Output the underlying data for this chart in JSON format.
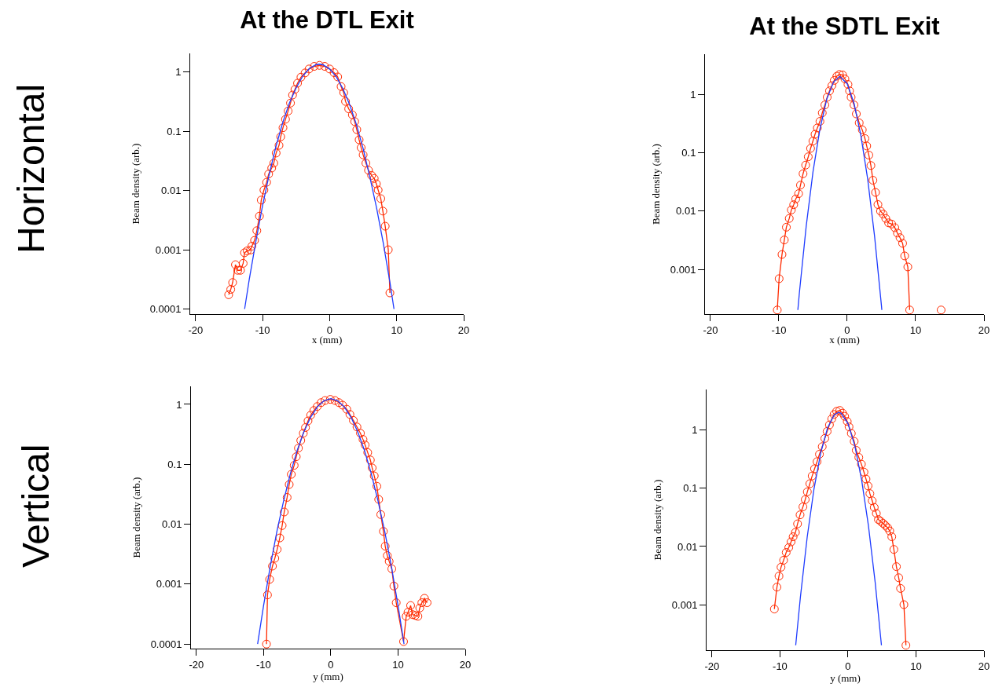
{
  "chart_data": [
    {
      "type": "line",
      "title": "At the DTL Exit",
      "annotations": [
        "Horizontal"
      ],
      "xlabel": "x (mm)",
      "ylabel": "Beam density (arb.)",
      "log": "y",
      "grid": false,
      "xlim": [
        -20.8,
        20
      ],
      "xticks": [
        -20,
        -10,
        0,
        10,
        20
      ],
      "ylim": [
        8.2e-05,
        2.07
      ],
      "yticks": [
        0.0001,
        0.001,
        0.01,
        0.1,
        1
      ],
      "series": [
        {
          "type": "line",
          "color": "#ff2a00",
          "marker": "circle",
          "x": [
            -15.06,
            -14.75,
            -14.47,
            -14.05,
            -13.7,
            -13.3,
            -12.9,
            -12.7,
            -12.3,
            -11.8,
            -11.6,
            -11.2,
            -10.86,
            -10.47,
            -10.2,
            -9.8,
            -9.4,
            -9.1,
            -8.64,
            -8.33,
            -7.98,
            -7.55,
            -7.3,
            -6.96,
            -6.58,
            -6.19,
            -5.84,
            -5.53,
            -5.18,
            -4.79,
            -4.28,
            -3.66,
            -3.07,
            -2.3,
            -1.52,
            -0.74,
            0,
            0.66,
            1.2,
            1.71,
            2.1,
            2.37,
            2.84,
            3.39,
            3.74,
            4.05,
            4.4,
            4.7,
            5.0,
            5.41,
            5.8,
            6.26,
            6.65,
            6.97,
            7.24,
            7.63,
            7.94,
            8.29,
            8.75,
            8.99
          ],
          "values": [
            0.000174,
            0.000214,
            0.00028,
            0.00056,
            0.00045,
            0.00045,
            0.00059,
            0.00089,
            0.00096,
            0.00099,
            0.00115,
            0.00144,
            0.0021,
            0.0037,
            0.0069,
            0.0102,
            0.0138,
            0.019,
            0.024,
            0.029,
            0.043,
            0.058,
            0.081,
            0.115,
            0.16,
            0.22,
            0.3,
            0.41,
            0.51,
            0.65,
            0.82,
            0.97,
            1.13,
            1.25,
            1.3,
            1.25,
            1.13,
            0.98,
            0.83,
            0.57,
            0.45,
            0.32,
            0.24,
            0.19,
            0.146,
            0.107,
            0.072,
            0.053,
            0.04,
            0.029,
            0.022,
            0.018,
            0.016,
            0.013,
            0.0102,
            0.0073,
            0.0045,
            0.0025,
            0.001,
            0.000187
          ]
        },
        {
          "type": "line",
          "color": "#1f3cff",
          "marker": "none",
          "x": [
            -12.68,
            -12,
            -11,
            -10,
            -9,
            -8,
            -7,
            -6,
            -5,
            -4,
            -3,
            -2,
            -1.54,
            -1,
            0,
            1,
            2,
            3,
            4,
            5,
            6,
            7,
            8,
            9,
            9.6
          ],
          "values": [
            0.0001,
            0.00031,
            0.0014,
            0.0056,
            0.019,
            0.056,
            0.14,
            0.3,
            0.54,
            0.86,
            1.16,
            1.34,
            1.36,
            1.33,
            1.13,
            0.83,
            0.52,
            0.28,
            0.13,
            0.051,
            0.017,
            0.0051,
            0.0013,
            0.00028,
            0.0001
          ]
        }
      ]
    },
    {
      "type": "line",
      "title": "At the SDTL Exit",
      "xlabel": "x (mm)",
      "ylabel": "Beam density (arb.)",
      "log": "y",
      "grid": false,
      "xlim": [
        -20.8,
        20
      ],
      "xticks": [
        -20,
        -10,
        0,
        10,
        20
      ],
      "ylim": [
        0.00017,
        5
      ],
      "yticks": [
        0.001,
        0.01,
        0.1,
        1
      ],
      "series": [
        {
          "type": "line",
          "color": "#ff2a00",
          "marker": "circle",
          "x": [
            -10.23,
            -9.96,
            -9.54,
            -9.2,
            -8.9,
            -8.48,
            -8.17,
            -7.83,
            -7.53,
            -7.11,
            -6.84,
            -6.46,
            -6.08,
            -5.7,
            -5.36,
            -5.02,
            -4.71,
            -4.37,
            -3.99,
            -3.65,
            -3.27,
            -2.93,
            -2.59,
            -2.24,
            -1.9,
            -1.52,
            -1.14,
            -0.68,
            -0.34,
            0.11,
            0.34,
            0.57,
            0.99,
            1.33,
            1.75,
            2.2,
            2.59,
            2.85,
            3.16,
            3.46,
            3.76,
            4.14,
            4.49,
            4.87,
            5.25,
            5.63,
            6.05,
            6.5,
            6.96,
            7.34,
            7.72,
            8.1,
            8.4,
            8.86,
            9.13,
            11.4,
            13.73
          ],
          "values": [
            0.0002,
            0.00069,
            0.0018,
            0.0032,
            0.0053,
            0.0075,
            0.0105,
            0.0129,
            0.0162,
            0.02,
            0.028,
            0.044,
            0.062,
            0.086,
            0.12,
            0.16,
            0.21,
            0.27,
            0.35,
            0.49,
            0.67,
            0.91,
            1.17,
            1.44,
            1.77,
            2.09,
            2.24,
            2.2,
            1.88,
            1.51,
            1.17,
            0.91,
            0.67,
            0.47,
            0.33,
            0.25,
            0.177,
            0.132,
            0.092,
            0.061,
            0.034,
            0.021,
            0.013,
            0.01,
            0.0089,
            0.0075,
            0.0063,
            0.006,
            0.0052,
            0.0042,
            0.0035,
            0.0028,
            0.0017,
            0.0011,
            0.0002,
            null,
            0.0002
          ]
        },
        {
          "type": "line",
          "color": "#1f3cff",
          "marker": "none",
          "x": [
            -7.22,
            -7,
            -6,
            -5,
            -4,
            -3,
            -2,
            -1.08,
            0,
            1,
            2,
            3,
            4,
            5,
            5.06
          ],
          "values": [
            0.0002,
            0.00039,
            0.0055,
            0.048,
            0.255,
            0.84,
            1.67,
            2.07,
            1.55,
            0.71,
            0.2,
            0.035,
            0.0037,
            0.00024,
            0.0002
          ]
        }
      ]
    },
    {
      "type": "line",
      "annotations": [
        "Vertical"
      ],
      "xlabel": "y (mm)",
      "ylabel": "Beam density (arb.)",
      "log": "y",
      "grid": false,
      "xlim": [
        -20.8,
        20
      ],
      "xticks": [
        -20,
        -10,
        0,
        10,
        20
      ],
      "ylim": [
        8.4e-05,
        2
      ],
      "yticks": [
        0.0001,
        0.001,
        0.01,
        0.1,
        1
      ],
      "series": [
        {
          "type": "line",
          "color": "#ff2a00",
          "marker": "circle",
          "x": [
            -9.57,
            -9.42,
            -9.1,
            -8.68,
            -8.33,
            -7.98,
            -7.59,
            -7.24,
            -6.93,
            -6.5,
            -6.19,
            -5.88,
            -5.45,
            -5.14,
            -4.82,
            -4.47,
            -4.09,
            -3.77,
            -3.39,
            -3.0,
            -2.53,
            -2.02,
            -1.44,
            -0.86,
            -0.08,
            0.62,
            1.21,
            1.75,
            2.37,
            2.84,
            3.35,
            3.89,
            4.4,
            4.79,
            5.1,
            5.49,
            5.88,
            6.15,
            6.46,
            6.85,
            7.12,
            7.43,
            7.82,
            8.09,
            8.4,
            8.68,
            9.07,
            9.38,
            9.73,
            10.82,
            11.21,
            11.48,
            11.87,
            12.18,
            12.57,
            12.96,
            13.23,
            13.54,
            13.93,
            14.32
          ],
          "values": [
            0.0001,
            0.00066,
            0.0012,
            0.002,
            0.0027,
            0.0038,
            0.0059,
            0.0095,
            0.016,
            0.028,
            0.046,
            0.068,
            0.096,
            0.134,
            0.186,
            0.25,
            0.33,
            0.41,
            0.53,
            0.66,
            0.79,
            0.92,
            1.07,
            1.16,
            1.21,
            1.16,
            1.07,
            0.97,
            0.83,
            0.68,
            0.54,
            0.42,
            0.33,
            0.26,
            0.21,
            0.157,
            0.118,
            0.087,
            0.064,
            0.043,
            0.026,
            0.0145,
            0.0076,
            0.0043,
            0.003,
            0.0024,
            0.0018,
            0.00093,
            0.00049,
            0.00011,
            0.00029,
            0.00034,
            0.00044,
            0.00031,
            0.0003,
            0.00029,
            0.0004,
            0.00049,
            0.00058,
            0.00049
          ]
        },
        {
          "type": "line",
          "color": "#1f3cff",
          "marker": "none",
          "x": [
            -10.89,
            -10,
            -9,
            -8,
            -7,
            -6,
            -5,
            -4,
            -3,
            -2,
            -1,
            0,
            1,
            2,
            3,
            4,
            5,
            6,
            7,
            8,
            9,
            10,
            10.89
          ],
          "values": [
            0.0001,
            0.00044,
            0.002,
            0.0078,
            0.025,
            0.071,
            0.171,
            0.35,
            0.61,
            0.91,
            1.15,
            1.25,
            1.15,
            0.91,
            0.61,
            0.35,
            0.171,
            0.071,
            0.025,
            0.0078,
            0.002,
            0.00044,
            0.0001
          ]
        }
      ]
    },
    {
      "type": "line",
      "xlabel": "y (mm)",
      "ylabel": "Beam density (arb.)",
      "log": "y",
      "grid": false,
      "xlim": [
        -20.8,
        20
      ],
      "xticks": [
        -20,
        -10,
        0,
        10,
        20
      ],
      "ylim": [
        0.000165,
        5
      ],
      "yticks": [
        0.001,
        0.01,
        0.1,
        1
      ],
      "series": [
        {
          "type": "line",
          "color": "#ff2a00",
          "marker": "circle",
          "x": [
            -10.83,
            -10.45,
            -10.15,
            -9.85,
            -9.47,
            -9.09,
            -8.71,
            -8.37,
            -8.07,
            -7.73,
            -7.42,
            -7.05,
            -6.63,
            -6.29,
            -5.98,
            -5.61,
            -5.27,
            -4.92,
            -4.55,
            -4.2,
            -3.79,
            -3.41,
            -3.07,
            -2.73,
            -2.39,
            -2.05,
            -1.67,
            -1.21,
            -0.8,
            -0.49,
            -0.11,
            0.15,
            0.49,
            0.91,
            1.21,
            1.59,
            1.97,
            2.35,
            2.65,
            2.95,
            3.22,
            3.56,
            3.86,
            4.17,
            4.47,
            4.81,
            5.15,
            5.49,
            5.83,
            6.14,
            6.44,
            6.74,
            7.12,
            7.46,
            7.73,
            8.22,
            8.52
          ],
          "values": [
            0.00084,
            0.002,
            0.0031,
            0.0044,
            0.0058,
            0.0079,
            0.0096,
            0.012,
            0.0147,
            0.0175,
            0.0245,
            0.035,
            0.048,
            0.064,
            0.087,
            0.12,
            0.163,
            0.217,
            0.287,
            0.385,
            0.52,
            0.72,
            0.95,
            1.23,
            1.56,
            1.86,
            2.11,
            2.18,
            1.96,
            1.73,
            1.41,
            1.14,
            0.88,
            0.64,
            0.45,
            0.34,
            0.26,
            0.19,
            0.144,
            0.11,
            0.081,
            0.061,
            0.047,
            0.037,
            0.029,
            0.027,
            0.025,
            0.023,
            0.021,
            0.0185,
            0.0147,
            0.0089,
            0.0045,
            0.0029,
            0.0019,
            0.001,
            0.0002
          ]
        },
        {
          "type": "line",
          "color": "#1f3cff",
          "marker": "none",
          "x": [
            -7.69,
            -7,
            -6,
            -5,
            -4,
            -3,
            -2,
            -1.385,
            -1,
            0,
            1,
            2,
            3,
            4,
            4.92
          ],
          "values": [
            0.0002,
            0.00135,
            0.0145,
            0.098,
            0.41,
            1.1,
            1.85,
            2.02,
            1.95,
            1.3,
            0.54,
            0.141,
            0.023,
            0.0024,
            0.0002
          ]
        }
      ]
    }
  ]
}
